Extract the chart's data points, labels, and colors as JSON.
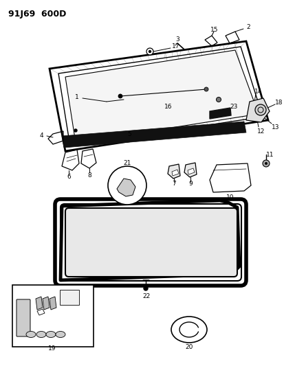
{
  "title": "91J69  600D",
  "bg_color": "#ffffff",
  "fig_width": 4.14,
  "fig_height": 5.33,
  "dpi": 100
}
